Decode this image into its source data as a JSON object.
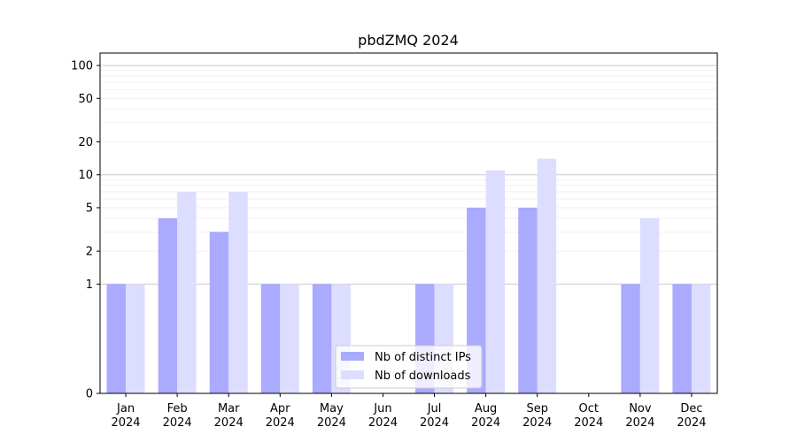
{
  "chart_data": {
    "type": "bar",
    "title": "pbdZMQ 2024",
    "xlabel": "",
    "ylabel": "",
    "y_scale": "symlog",
    "ylim": [
      0,
      130
    ],
    "y_ticks": [
      "0",
      "1",
      "2",
      "5",
      "10",
      "20",
      "50",
      "100"
    ],
    "categories": [
      [
        "Jan",
        "2024"
      ],
      [
        "Feb",
        "2024"
      ],
      [
        "Mar",
        "2024"
      ],
      [
        "Apr",
        "2024"
      ],
      [
        "May",
        "2024"
      ],
      [
        "Jun",
        "2024"
      ],
      [
        "Jul",
        "2024"
      ],
      [
        "Aug",
        "2024"
      ],
      [
        "Sep",
        "2024"
      ],
      [
        "Oct",
        "2024"
      ],
      [
        "Nov",
        "2024"
      ],
      [
        "Dec",
        "2024"
      ]
    ],
    "series": [
      {
        "name": "Nb of distinct IPs",
        "color": "#aaaaff",
        "values": [
          1,
          4,
          3,
          1,
          1,
          0,
          1,
          5,
          5,
          0,
          1,
          1
        ]
      },
      {
        "name": "Nb of downloads",
        "color": "#ddddff",
        "values": [
          1,
          7,
          7,
          1,
          1,
          0,
          1,
          11,
          14,
          0,
          4,
          1
        ]
      }
    ],
    "legend_position": "lower-center",
    "grid": "horizontal"
  }
}
